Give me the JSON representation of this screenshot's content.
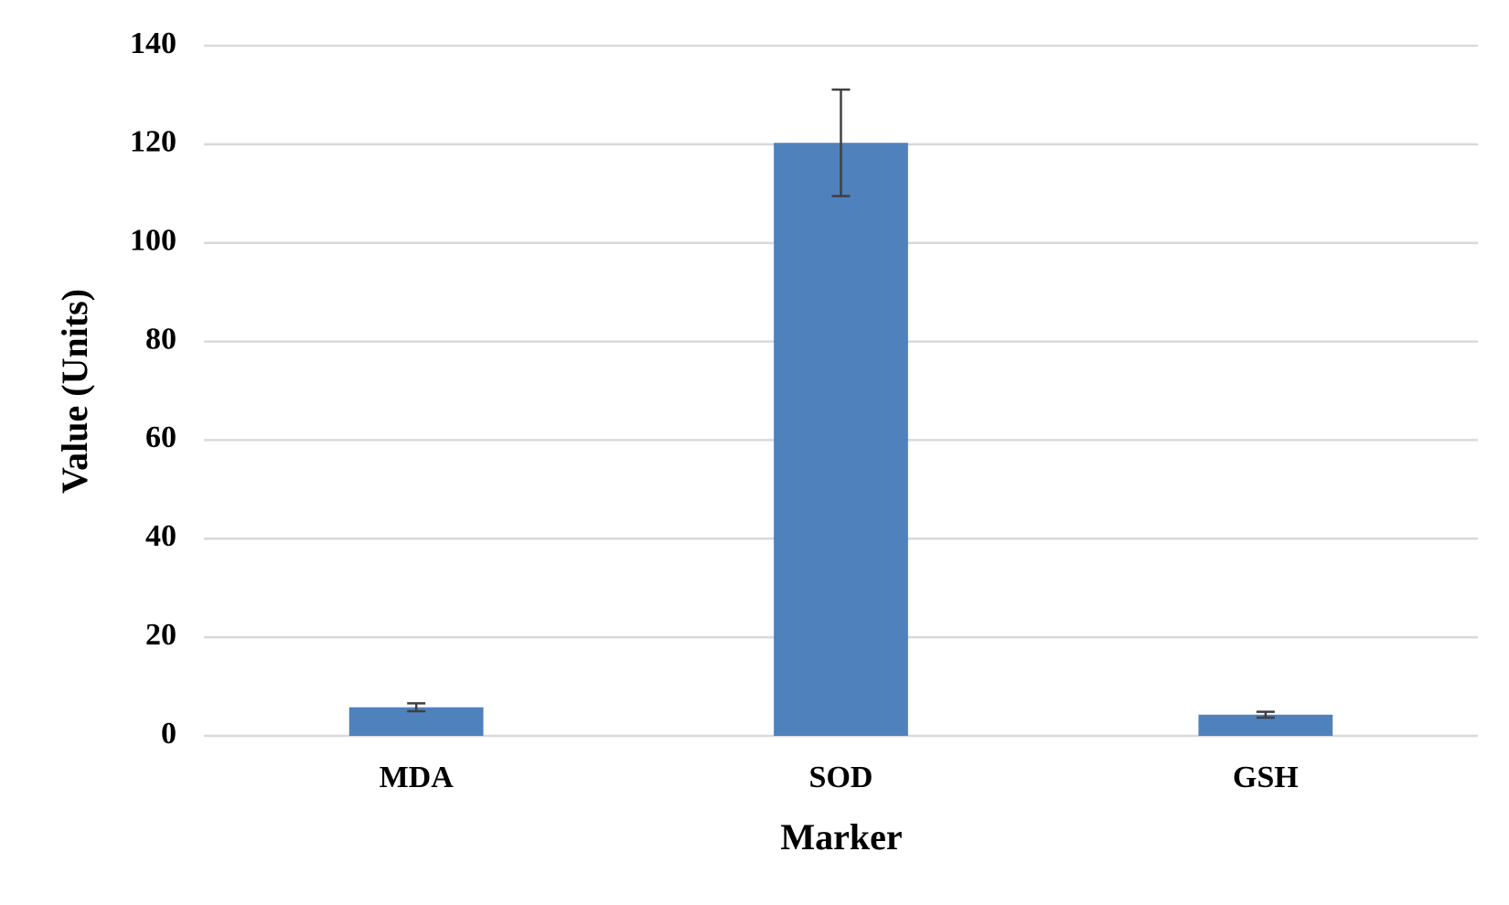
{
  "chart_data": {
    "type": "bar",
    "x_label": "Marker",
    "y_label": "Value (Units)",
    "categories": [
      "MDA",
      "SOD",
      "GSH"
    ],
    "values": [
      5.8,
      120.3,
      4.3
    ],
    "errors": [
      0.8,
      10.8,
      0.6
    ],
    "color": "#4f81bd",
    "ylim": [
      0,
      140
    ],
    "yticks": [
      0,
      20,
      40,
      60,
      80,
      100,
      120,
      140
    ],
    "grid": true
  }
}
